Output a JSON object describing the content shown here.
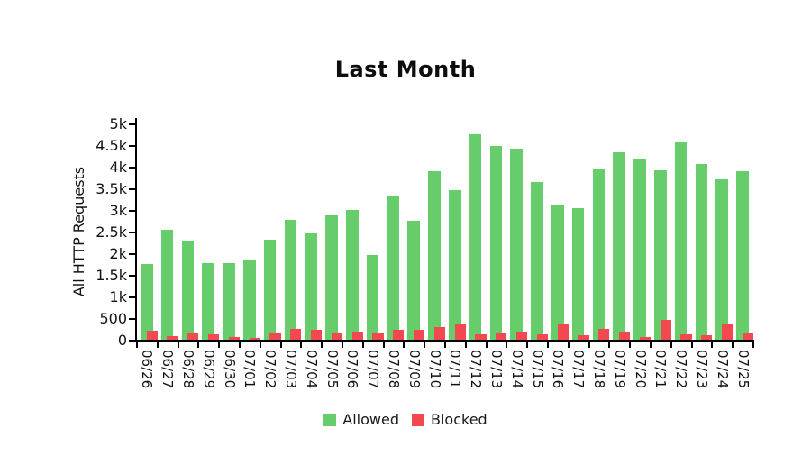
{
  "chart_data": {
    "type": "bar",
    "title": "Last Month",
    "xlabel": "",
    "ylabel": "All HTTP Requests",
    "ylim": [
      0,
      5000
    ],
    "grid": false,
    "legend_position": "bottom-center",
    "yticks": [
      {
        "value": 0,
        "label": "0"
      },
      {
        "value": 500,
        "label": "500"
      },
      {
        "value": 1000,
        "label": "1k"
      },
      {
        "value": 1500,
        "label": "1.5k"
      },
      {
        "value": 2000,
        "label": "2k"
      },
      {
        "value": 2500,
        "label": "2.5k"
      },
      {
        "value": 3000,
        "label": "3k"
      },
      {
        "value": 3500,
        "label": "3.5k"
      },
      {
        "value": 4000,
        "label": "4k"
      },
      {
        "value": 4500,
        "label": "4.5k"
      },
      {
        "value": 5000,
        "label": "5k"
      }
    ],
    "categories": [
      "06/26",
      "06/27",
      "06/28",
      "06/29",
      "06/30",
      "07/01",
      "07/02",
      "07/03",
      "07/04",
      "07/05",
      "07/06",
      "07/07",
      "07/08",
      "07/09",
      "07/10",
      "07/11",
      "07/12",
      "07/13",
      "07/14",
      "07/15",
      "07/16",
      "07/17",
      "07/18",
      "07/19",
      "07/20",
      "07/21",
      "07/22",
      "07/23",
      "07/24",
      "07/25"
    ],
    "series": [
      {
        "name": "Allowed",
        "color": "#66cd6a",
        "values": [
          1750,
          2550,
          2290,
          1780,
          1770,
          1830,
          2320,
          2780,
          2460,
          2880,
          3000,
          1950,
          3310,
          2750,
          3900,
          3450,
          4740,
          4470,
          4410,
          3640,
          3110,
          3050,
          3930,
          4330,
          4180,
          3910,
          4560,
          4060,
          3700,
          3890
        ]
      },
      {
        "name": "Blocked",
        "color": "#f2484f",
        "values": [
          210,
          90,
          165,
          115,
          65,
          50,
          145,
          240,
          220,
          140,
          180,
          140,
          230,
          220,
          290,
          365,
          125,
          175,
          190,
          120,
          370,
          105,
          240,
          195,
          70,
          460,
          120,
          105,
          350,
          175
        ]
      }
    ],
    "axis_color": "#000000",
    "text_color": "#111111",
    "background_color": "#ffffff"
  }
}
